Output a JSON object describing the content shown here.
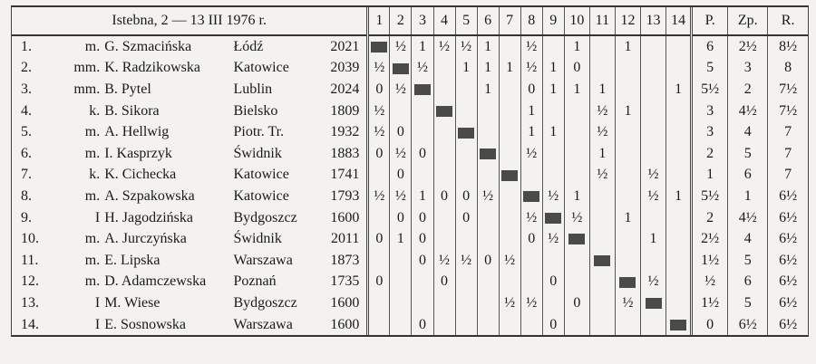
{
  "header": {
    "title": "Istebna, 2 — 13 III 1976 r.",
    "rounds": [
      "1",
      "2",
      "3",
      "4",
      "5",
      "6",
      "7",
      "8",
      "9",
      "10",
      "11",
      "12",
      "13",
      "14"
    ],
    "p": "P.",
    "zp": "Zp.",
    "r": "R."
  },
  "table": {
    "rows": [
      {
        "no": "1.",
        "title": "m.",
        "name": "G. Szmacińska",
        "city": "Łódź",
        "rating": "2021",
        "results": [
          null,
          "½",
          "1",
          "½",
          "½",
          "1",
          null,
          "½",
          null,
          "1",
          null,
          "1",
          null,
          null
        ],
        "p": "6",
        "zp": "2½",
        "r": "8½"
      },
      {
        "no": "2.",
        "title": "mm.",
        "name": "K. Radzikowska",
        "city": "Katowice",
        "rating": "2039",
        "results": [
          "½",
          null,
          "½",
          null,
          "1",
          "1",
          "1",
          "½",
          "1",
          "0",
          null,
          null,
          null,
          null
        ],
        "p": "5",
        "zp": "3",
        "r": "8"
      },
      {
        "no": "3.",
        "title": "mm.",
        "name": "B. Pytel",
        "city": "Lublin",
        "rating": "2024",
        "results": [
          "0",
          "½",
          null,
          null,
          null,
          "1",
          null,
          "0",
          "1",
          "1",
          "1",
          null,
          null,
          "1"
        ],
        "p": "5½",
        "zp": "2",
        "r": "7½"
      },
      {
        "no": "4.",
        "title": "k.",
        "name": "B. Sikora",
        "city": "Bielsko",
        "rating": "1809",
        "results": [
          "½",
          null,
          null,
          null,
          null,
          null,
          null,
          "1",
          null,
          null,
          "½",
          "1",
          null,
          null
        ],
        "p": "3",
        "zp": "4½",
        "r": "7½"
      },
      {
        "no": "5.",
        "title": "m.",
        "name": "A. Hellwig",
        "city": "Piotr. Tr.",
        "rating": "1932",
        "results": [
          "½",
          "0",
          null,
          null,
          null,
          null,
          null,
          "1",
          "1",
          null,
          "½",
          null,
          null,
          null
        ],
        "p": "3",
        "zp": "4",
        "r": "7"
      },
      {
        "no": "6.",
        "title": "m.",
        "name": "I. Kasprzyk",
        "city": "Świdnik",
        "rating": "1883",
        "results": [
          "0",
          "½",
          "0",
          null,
          null,
          null,
          null,
          "½",
          null,
          null,
          "1",
          null,
          null,
          null
        ],
        "p": "2",
        "zp": "5",
        "r": "7"
      },
      {
        "no": "7.",
        "title": "k.",
        "name": "K. Cichecka",
        "city": "Katowice",
        "rating": "1741",
        "results": [
          null,
          "0",
          null,
          null,
          null,
          null,
          null,
          null,
          null,
          null,
          "½",
          null,
          "½",
          null
        ],
        "p": "1",
        "zp": "6",
        "r": "7"
      },
      {
        "no": "8.",
        "title": "m.",
        "name": "A. Szpakowska",
        "city": "Katowice",
        "rating": "1793",
        "results": [
          "½",
          "½",
          "1",
          "0",
          "0",
          "½",
          null,
          null,
          "½",
          "1",
          null,
          null,
          "½",
          "1"
        ],
        "p": "5½",
        "zp": "1",
        "r": "6½"
      },
      {
        "no": "9.",
        "title": "I",
        "name": "H. Jagodzińska",
        "city": "Bydgoszcz",
        "rating": "1600",
        "results": [
          null,
          "0",
          "0",
          null,
          "0",
          null,
          null,
          "½",
          null,
          "½",
          null,
          "1",
          null,
          null
        ],
        "p": "2",
        "zp": "4½",
        "r": "6½"
      },
      {
        "no": "10.",
        "title": "m.",
        "name": "A. Jurczyńska",
        "city": "Świdnik",
        "rating": "2011",
        "results": [
          "0",
          "1",
          "0",
          null,
          null,
          null,
          null,
          "0",
          "½",
          null,
          null,
          null,
          "1",
          null
        ],
        "p": "2½",
        "zp": "4",
        "r": "6½"
      },
      {
        "no": "11.",
        "title": "m.",
        "name": "E. Lipska",
        "city": "Warszawa",
        "rating": "1873",
        "results": [
          null,
          null,
          "0",
          "½",
          "½",
          "0",
          "½",
          null,
          null,
          null,
          null,
          null,
          null,
          null
        ],
        "p": "1½",
        "zp": "5",
        "r": "6½"
      },
      {
        "no": "12.",
        "title": "m.",
        "name": "D. Adamczewska",
        "city": "Poznań",
        "rating": "1735",
        "results": [
          "0",
          null,
          null,
          "0",
          null,
          null,
          null,
          null,
          "0",
          null,
          null,
          null,
          "½",
          null
        ],
        "p": "½",
        "zp": "6",
        "r": "6½"
      },
      {
        "no": "13.",
        "title": "I",
        "name": "M. Wiese",
        "city": "Bydgoszcz",
        "rating": "1600",
        "results": [
          null,
          null,
          null,
          null,
          null,
          null,
          "½",
          "½",
          null,
          "0",
          null,
          "½",
          null,
          null
        ],
        "p": "1½",
        "zp": "5",
        "r": "6½"
      },
      {
        "no": "14.",
        "title": "I",
        "name": "E. Sosnowska",
        "city": "Warszawa",
        "rating": "1600",
        "results": [
          null,
          null,
          "0",
          null,
          null,
          null,
          null,
          null,
          "0",
          null,
          null,
          null,
          null,
          null
        ],
        "p": "0",
        "zp": "6½",
        "r": "6½"
      }
    ]
  }
}
